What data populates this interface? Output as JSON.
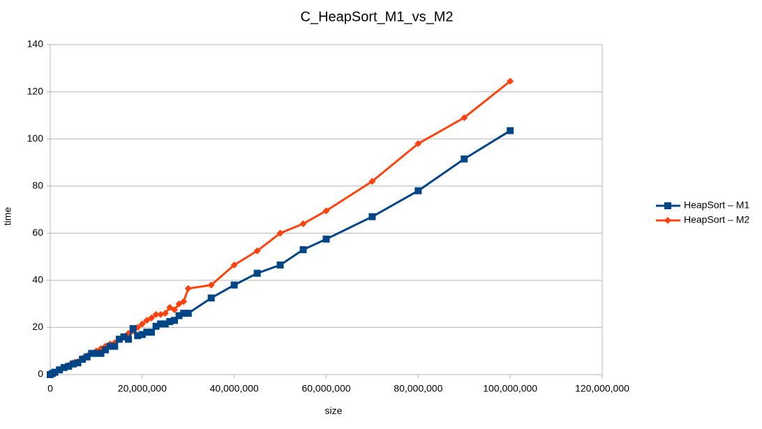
{
  "chart_data": {
    "type": "line",
    "title": "C_HeapSort_M1_vs_M2",
    "x_label": "size",
    "y_label": "time",
    "x": [
      0,
      500000,
      1000000,
      2000000,
      3000000,
      4000000,
      5000000,
      6000000,
      7000000,
      8000000,
      9000000,
      10000000,
      11000000,
      12000000,
      13000000,
      14000000,
      15000000,
      16000000,
      17000000,
      18000000,
      19000000,
      20000000,
      21000000,
      22000000,
      23000000,
      24000000,
      25000000,
      26000000,
      27000000,
      28000000,
      29000000,
      30000000,
      35000000,
      40000000,
      45000000,
      50000000,
      55000000,
      60000000,
      70000000,
      80000000,
      90000000,
      100000000
    ],
    "series": [
      {
        "name": "HeapSort – M1",
        "color": "#004586",
        "marker": "square",
        "values": [
          0,
          0.5,
          1,
          2,
          3,
          3.5,
          4.5,
          5,
          6.5,
          7.5,
          9,
          9,
          9,
          10.5,
          12,
          12,
          15,
          16,
          15,
          19.5,
          16.5,
          17,
          18,
          18,
          20.5,
          21.5,
          21.5,
          22.5,
          23,
          25,
          26,
          26,
          32.5,
          38,
          43,
          46.5,
          53,
          57.5,
          67,
          78,
          91.5,
          103.5
        ]
      },
      {
        "name": "HeapSort – M2",
        "color": "#ff420e",
        "marker": "diamond",
        "values": [
          0,
          0.5,
          1,
          2,
          3,
          4,
          5,
          5.5,
          7,
          8,
          9,
          10,
          11,
          12,
          13,
          13.5,
          15,
          16,
          17.5,
          18.5,
          20,
          21.5,
          23,
          24,
          25.5,
          25.5,
          26,
          28.5,
          27.5,
          30,
          31,
          36.5,
          38,
          46.5,
          52.5,
          60,
          64,
          69.5,
          82,
          98,
          109,
          124.5
        ]
      }
    ],
    "xlim": [
      0,
      120000000
    ],
    "xticks": [
      0,
      {
        "value": 20000000,
        "label": "20,000,000"
      },
      {
        "value": 40000000,
        "label": "40,000,000"
      },
      {
        "value": 60000000,
        "label": "60,000,000"
      },
      {
        "value": 80000000,
        "label": "80,000,000"
      },
      {
        "value": 100000000,
        "label": "100,000,000"
      },
      {
        "value": 120000000,
        "label": "120,000,000"
      }
    ],
    "ylim": [
      0,
      140
    ],
    "yticks": [
      0,
      20,
      40,
      60,
      80,
      100,
      120,
      140
    ],
    "grid": true,
    "legend": "right"
  }
}
